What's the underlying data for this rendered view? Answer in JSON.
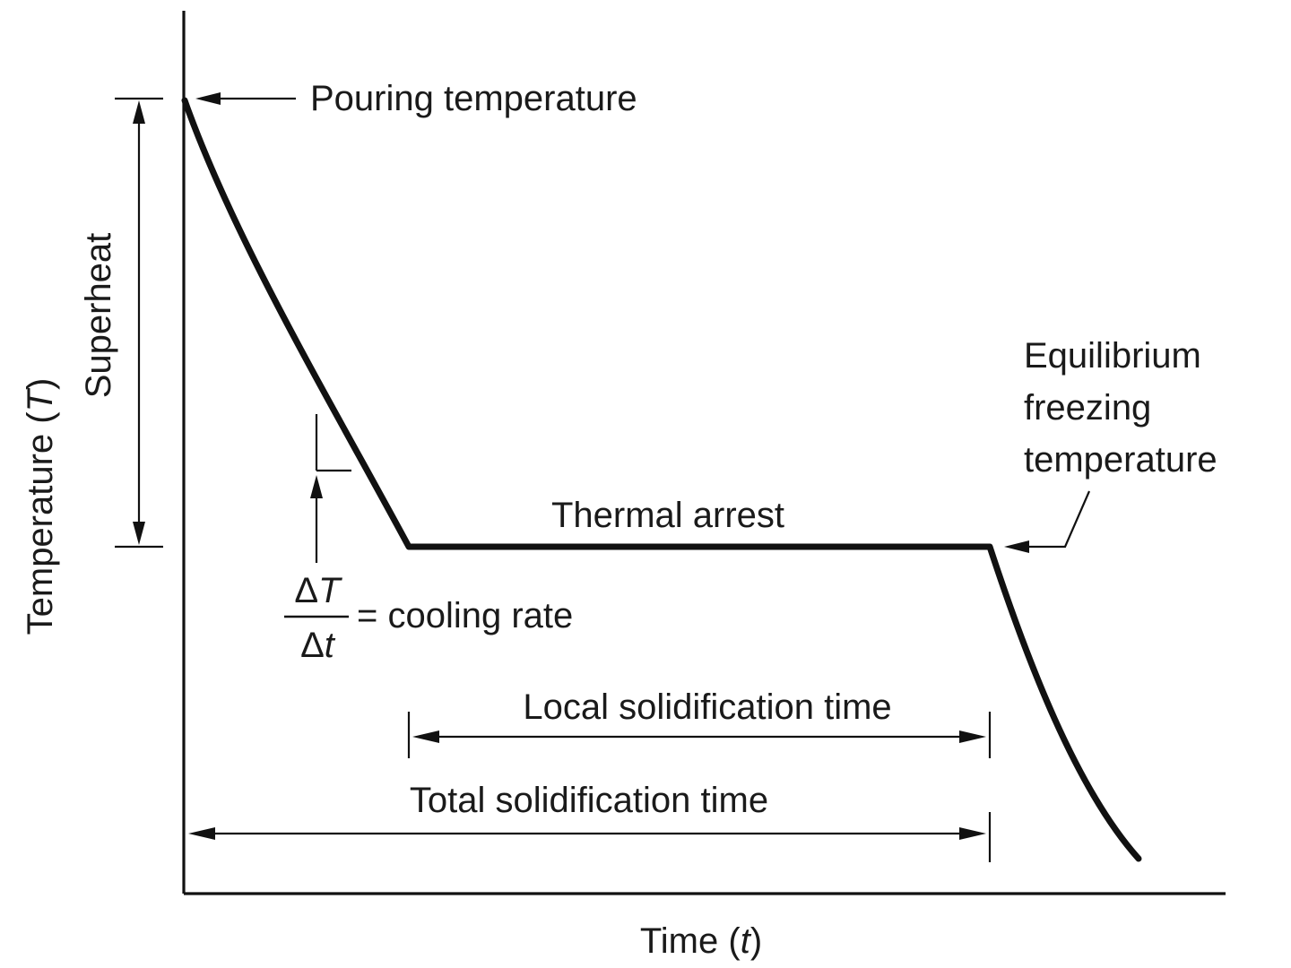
{
  "diagram": {
    "y_axis_label_text": "Temperature (",
    "y_axis_label_var": "T",
    "y_axis_label_close": ")",
    "x_axis_label_text": "Time (",
    "x_axis_label_var": "t",
    "x_axis_label_close": ")",
    "superheat_label": "Superheat",
    "pouring_temperature_label": "Pouring temperature",
    "thermal_arrest_label": "Thermal arrest",
    "equilibrium_label_line1": "Equilibrium",
    "equilibrium_label_line2": "freezing",
    "equilibrium_label_line3": "temperature",
    "cooling_rate_numerator_delta": "Δ",
    "cooling_rate_numerator_var": "T",
    "cooling_rate_denominator_delta": "Δ",
    "cooling_rate_denominator_var": "t",
    "cooling_rate_label": "= cooling rate",
    "local_solidification_label": "Local solidification time",
    "total_solidification_label": "Total solidification time"
  }
}
